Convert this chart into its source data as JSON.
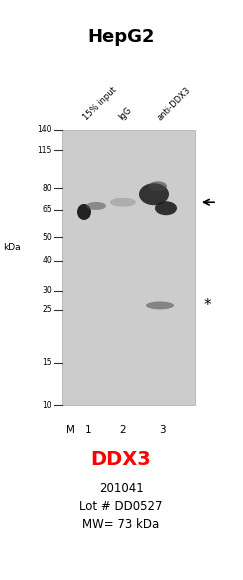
{
  "title": "HepG2",
  "title_fontsize": 13,
  "title_fontweight": "bold",
  "col_labels": [
    "15% input",
    "IgG",
    "anti-DDX3"
  ],
  "lane_labels": [
    "M",
    "1",
    "2",
    "3"
  ],
  "kda_label": "kDa",
  "mw_markers": [
    140,
    115,
    80,
    65,
    50,
    40,
    30,
    25,
    15,
    10
  ],
  "gene_name": "DDX3",
  "catalog": "201041",
  "lot": "Lot # DD0527",
  "mw_text": "MW= 73 kDa",
  "gene_color": "#ff0000",
  "gel_bg": "#cccccc",
  "band_dark": "#111111",
  "band_mid": "#777777",
  "figsize": [
    2.43,
    5.8
  ],
  "dpi": 100
}
